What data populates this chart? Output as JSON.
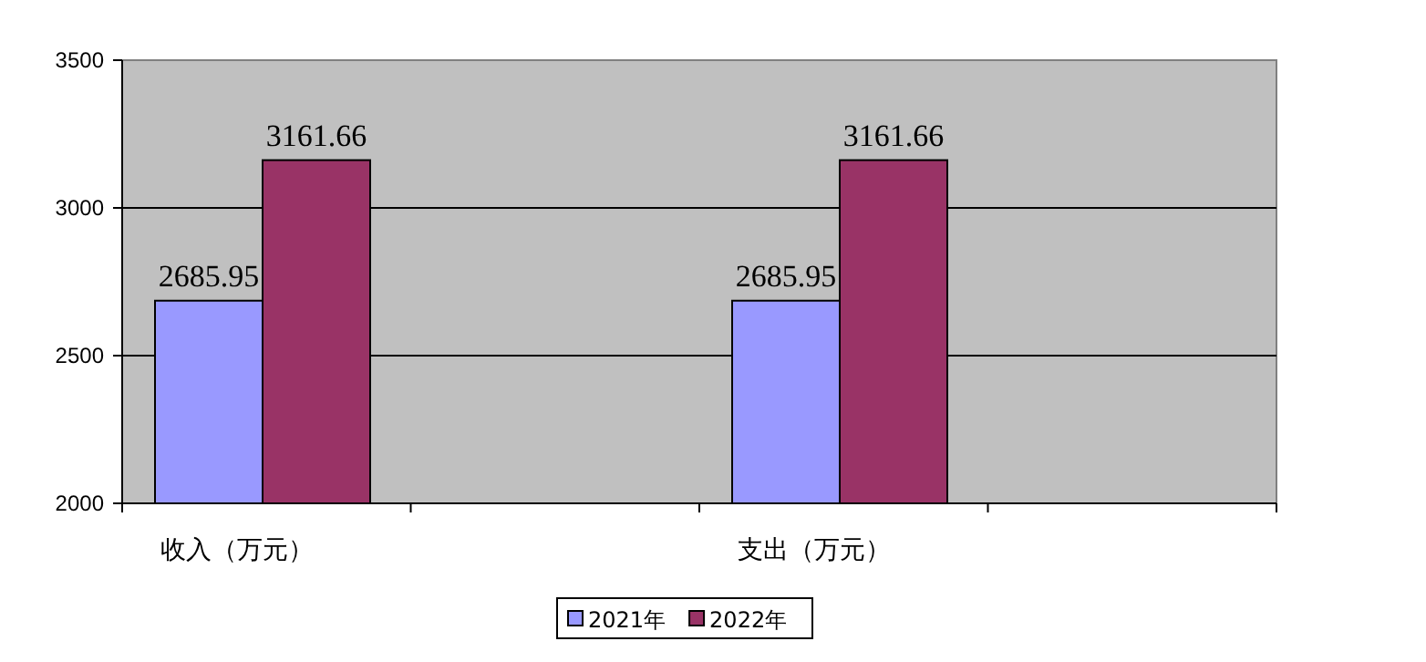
{
  "chart_data": {
    "type": "bar",
    "categories": [
      "收入（万元）",
      "支出（万元）"
    ],
    "series": [
      {
        "name": "2021年",
        "color": "#9999ff",
        "values": [
          2685.95,
          2685.95
        ]
      },
      {
        "name": "2022年",
        "color": "#993366",
        "values": [
          3161.66,
          3161.66
        ]
      }
    ],
    "ylim": [
      2000,
      3500
    ],
    "yticks": [
      2000,
      2500,
      3000,
      3500
    ],
    "grid": "y",
    "legend": "bottom",
    "data_labels": true
  }
}
